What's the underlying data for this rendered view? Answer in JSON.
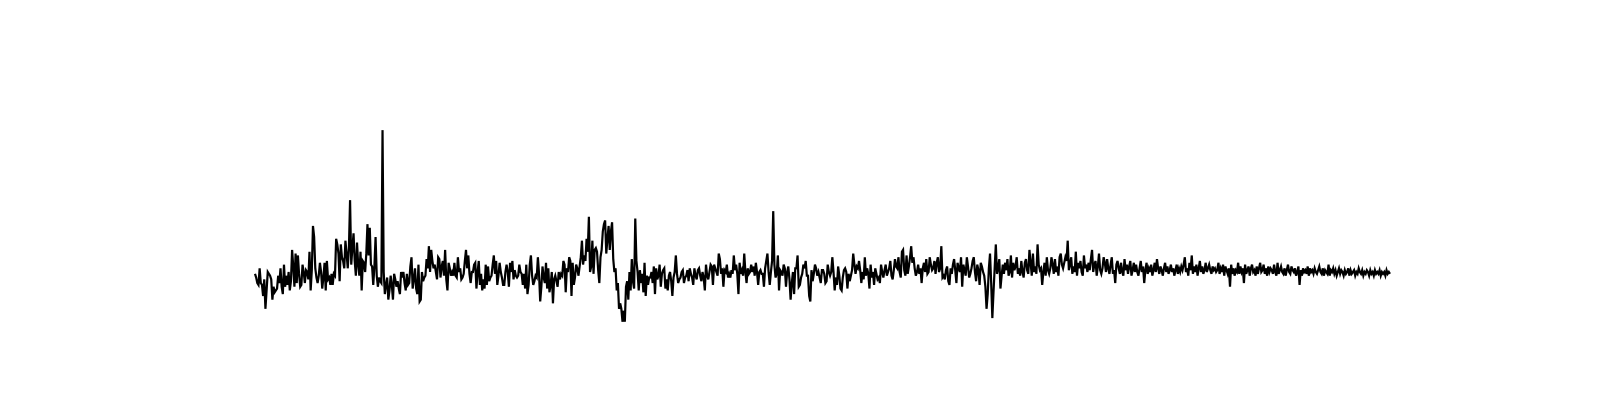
{
  "chart_data": {
    "type": "line",
    "title": "",
    "xlabel": "",
    "ylabel": "",
    "axes_visible": false,
    "grid": false,
    "legend": "none",
    "color": "#000000",
    "xlim": [
      0,
      999
    ],
    "ylim": [
      -3.4,
      11.8
    ],
    "series": [
      {
        "values": [
          0.3,
          0.1,
          -0.2,
          -0.3,
          0.6,
          -0.2,
          -0.3,
          -0.9,
          0.0,
          -1.6,
          -0.6,
          0.4,
          0.3,
          0.2,
          0.0,
          -1.1,
          -0.4,
          -0.7,
          -0.6,
          -0.5,
          0.2,
          -0.2,
          0.6,
          -0.4,
          -0.8,
          0.8,
          -0.4,
          0.2,
          -0.3,
          0.4,
          -0.6,
          -0.1,
          1.6,
          0.7,
          -0.4,
          1.4,
          -0.2,
          1.3,
          0.3,
          -0.4,
          -0.3,
          0.8,
          0.4,
          -0.2,
          0.5,
          0.4,
          0.0,
          1.5,
          -0.6,
          0.5,
          2.9,
          2.3,
          0.6,
          0.1,
          -0.2,
          0.2,
          0.9,
          0.4,
          -0.5,
          0.1,
          0.9,
          -0.6,
          1.0,
          0.0,
          0.1,
          -0.3,
          0.3,
          -0.3,
          0.3,
          0.2,
          2.2,
          1.9,
          1.4,
          -0.1,
          1.9,
          1.2,
          1.0,
          0.6,
          2.1,
          1.4,
          0.6,
          1.7,
          4.3,
          0.8,
          1.7,
          2.5,
          1.0,
          0.2,
          2.0,
          0.8,
          0.2,
          1.5,
          -0.6,
          1.0,
          0.9,
          0.4,
          1.4,
          3.0,
          1.3,
          2.8,
          0.8,
          0.7,
          -0.3,
          0.7,
          2.3,
          0.2,
          -0.4,
          0.1,
          -0.1,
          -0.2,
          8.1,
          0.4,
          -0.8,
          -0.3,
          0.1,
          -1.1,
          -0.6,
          0.2,
          -0.3,
          -1.1,
          0.3,
          0.0,
          -0.4,
          -0.1,
          -0.5,
          -0.8,
          0.4,
          0.1,
          0.4,
          -0.2,
          -0.6,
          0.3,
          -0.3,
          -0.2,
          0.7,
          1.2,
          -0.5,
          0.0,
          0.6,
          -0.5,
          -0.8,
          0.8,
          -1.2,
          -1.1,
          0.4,
          -0.1,
          0.1,
          0.2,
          1.1,
          0.6,
          1.8,
          0.4,
          1.6,
          1.0,
          0.6,
          0.8,
          0.4,
          0.0,
          1.2,
          1.1,
          0.1,
          0.7,
          1.0,
          0.2,
          1.6,
          0.0,
          -0.6,
          0.9,
          0.6,
          0.2,
          0.4,
          0.2,
          0.9,
          0.2,
          0.1,
          1.2,
          0.4,
          0.6,
          0.0,
          0.1,
          0.3,
          1.0,
          1.6,
          0.6,
          1.3,
          0.3,
          -0.2,
          0.4,
          0.4,
          0.8,
          0.9,
          -0.5,
          0.4,
          1.0,
          -0.3,
          0.3,
          -0.6,
          0.0,
          -0.5,
          0.8,
          -0.3,
          0.7,
          -0.1,
          0.1,
          0.2,
          0.8,
          1.3,
          0.3,
          1.0,
          -0.3,
          0.2,
          0.9,
          0.4,
          0.1,
          -0.3,
          -0.3,
          0.4,
          0.8,
          0.4,
          -0.4,
          0.9,
          0.4,
          1.0,
          0.0,
          0.5,
          0.2,
          0.1,
          0.2,
          0.8,
          0.4,
          0.3,
          -0.3,
          0.3,
          -0.5,
          0.8,
          -0.8,
          -0.3,
          0.8,
          1.3,
          0.2,
          -0.3,
          -0.1,
          0.2,
          0.1,
          1.2,
          0.3,
          -1.2,
          -0.4,
          0.7,
          0.1,
          -0.2,
          0.9,
          -0.5,
          0.6,
          -0.7,
          -0.3,
          0.4,
          -1.3,
          0.0,
          0.2,
          -0.1,
          -0.4,
          0.4,
          0.0,
          0.3,
          0.2,
          1.0,
          0.8,
          -0.7,
          0.6,
          0.4,
          1.2,
          1.0,
          -0.9,
          0.9,
          -0.3,
          0.1,
          0.8,
          0.6,
          0.2,
          0.7,
          1.2,
          2.1,
          0.8,
          1.3,
          1.0,
          2.2,
          1.5,
          3.4,
          0.4,
          0.7,
          2.1,
          0.3,
          1.6,
          1.7,
          1.5,
          0.5,
          -0.2,
          1.2,
          1.6,
          2.6,
          3.0,
          3.2,
          1.4,
          2.2,
          2.9,
          1.6,
          2.6,
          3.1,
          1.1,
          0.4,
          0.6,
          -0.6,
          -0.2,
          -1.6,
          -1.3,
          -1.6,
          -2.3,
          -1.7,
          -2.3,
          -0.4,
          -0.1,
          -1.1,
          0.4,
          -0.6,
          1.1,
          -0.1,
          -0.5,
          3.3,
          1.0,
          0.4,
          -0.6,
          0.5,
          -0.2,
          0.3,
          -0.7,
          0.9,
          -0.9,
          0.2,
          -0.3,
          0.1,
          0.1,
          0.4,
          -0.2,
          0.7,
          -0.8,
          0.6,
          0.0,
          0.2,
          0.8,
          -0.4,
          0.3,
          0.5,
          0.6,
          -0.5,
          0.0,
          -0.6,
          0.2,
          0.4,
          -0.1,
          -0.9,
          0.1,
          0.4,
          1.3,
          0.3,
          -0.2,
          0.0,
          0.1,
          0.4,
          0.5,
          -0.2,
          0.1,
          0.2,
          0.5,
          -0.1,
          0.6,
          0.3,
          0.1,
          -0.3,
          0.6,
          0.2,
          0.0,
          0.5,
          0.6,
          0.2,
          -0.1,
          0.4,
          0.1,
          -0.6,
          0.8,
          0.2,
          0.0,
          0.4,
          0.8,
          0.7,
          -0.3,
          0.8,
          0.6,
          0.4,
          0.2,
          1.4,
          1.1,
          0.3,
          0.6,
          -0.4,
          0.5,
          0.4,
          0.8,
          0.1,
          0.3,
          0.1,
          0.5,
          0.3,
          1.3,
          0.5,
          0.8,
          0.3,
          -0.8,
          0.9,
          0.3,
          0.5,
          0.2,
          1.4,
          0.4,
          -0.2,
          0.6,
          0.3,
          0.4,
          0.8,
          0.4,
          0.7,
          0.2,
          0.9,
          0.4,
          -0.3,
          0.4,
          0.5,
          0.3,
          0.3,
          -0.4,
          0.6,
          1.0,
          1.4,
          0.4,
          -0.3,
          0.4,
          1.0,
          3.7,
          0.8,
          0.1,
          0.3,
          1.3,
          -0.6,
          0.5,
          0.4,
          0.2,
          0.8,
          0.6,
          -0.4,
          0.4,
          0.7,
          0.0,
          -1.1,
          -0.2,
          0.4,
          -0.8,
          0.6,
          0.6,
          1.3,
          -0.4,
          -0.3,
          0.1,
          0.3,
          0.8,
          0.6,
          1.0,
          0.2,
          0.2,
          -0.9,
          -1.2,
          0.5,
          -0.1,
          0.3,
          0.8,
          0.6,
          0.2,
          0.4,
          0.1,
          -0.2,
          0.5,
          0.5,
          0.3,
          -0.2,
          -0.1,
          0.8,
          0.4,
          0.2,
          0.4,
          1.2,
          0.4,
          -0.6,
          0.1,
          -0.3,
          0.7,
          0.2,
          -0.5,
          -0.6,
          0.1,
          0.5,
          0.6,
          0.4,
          -0.5,
          0.3,
          -0.1,
          0.2,
          0.5,
          1.4,
          0.8,
          0.3,
          0.7,
          0.6,
          1.0,
          0.5,
          -0.2,
          0.4,
          0.0,
          1.2,
          0.2,
          0.6,
          0.3,
          -0.5,
          0.8,
          0.1,
          0.4,
          -0.3,
          0.6,
          0.3,
          0.0,
          0.1,
          -0.2,
          0.8,
          0.4,
          0.1,
          0.5,
          0.8,
          0.2,
          0.4,
          0.6,
          1.0,
          0.2,
          0.0,
          0.5,
          1.1,
          0.7,
          0.6,
          1.2,
          0.4,
          0.1,
          1.5,
          1.6,
          0.5,
          0.2,
          1.3,
          0.3,
          0.7,
          1.2,
          1.8,
          0.9,
          1.2,
          0.6,
          0.2,
          0.4,
          0.8,
          0.3,
          0.6,
          -0.2,
          0.6,
          0.9,
          0.4,
          1.1,
          0.3,
          0.4,
          1.2,
          0.8,
          0.5,
          0.6,
          1.0,
          0.3,
          0.9,
          1.2,
          0.4,
          0.6,
          1.8,
          0.1,
          0.2,
          0.0,
          0.5,
          0.7,
          -0.1,
          -0.3,
          0.6,
          0.3,
          0.8,
          1.1,
          0.5,
          -0.2,
          0.9,
          0.6,
          0.4,
          1.2,
          -0.4,
          0.8,
          0.5,
          0.2,
          1.2,
          0.7,
          0.1,
          0.3,
          0.6,
          1.0,
          1.2,
          0.4,
          -0.1,
          0.8,
          0.5,
          -0.3,
          0.9,
          0.7,
          0.4,
          0.2,
          -0.4,
          -1.6,
          -0.8,
          0.6,
          1.4,
          -0.2,
          -2.1,
          -0.7,
          0.6,
          1.9,
          0.3,
          0.6,
          1.1,
          -0.5,
          0.2,
          0.8,
          0.3,
          0.9,
          0.5,
          1.1,
          0.2,
          0.4,
          1.3,
          0.1,
          0.9,
          0.5,
          0.7,
          1.2,
          0.3,
          0.6,
          0.2,
          1.0,
          0.4,
          0.1,
          0.9,
          1.1,
          0.5,
          0.3,
          1.6,
          0.9,
          0.2,
          1.4,
          0.4,
          0.7,
          0.3,
          1.9,
          0.8,
          0.5,
          0.6,
          -0.3,
          0.4,
          0.9,
          0.2,
          1.2,
          0.5,
          0.3,
          0.6,
          1.2,
          0.8,
          0.3,
          1.1,
          0.4,
          0.7,
          0.2,
          1.2,
          1.4,
          0.8,
          0.6,
          0.9,
          1.2,
          1.0,
          2.1,
          0.5,
          0.8,
          1.2,
          0.3,
          0.7,
          0.4,
          1.5,
          0.2,
          0.9,
          0.6,
          1.0,
          0.4,
          0.2,
          1.3,
          0.6,
          0.8,
          0.4,
          0.9,
          0.5,
          1.1,
          1.6,
          0.4,
          0.8,
          1.0,
          0.2,
          0.7,
          1.4,
          0.5,
          0.3,
          0.6,
          1.2,
          0.9,
          0.4,
          1.1,
          0.6,
          0.3,
          0.8,
          1.2,
          0.3,
          0.5,
          -0.2,
          0.8,
          1.0,
          0.6,
          0.3,
          0.9,
          0.4,
          0.2,
          1.1,
          0.5,
          0.8,
          0.3,
          0.7,
          1.0,
          0.2,
          0.5,
          0.9,
          0.4,
          0.8,
          0.4,
          0.2,
          0.6,
          1.0,
          0.4,
          0.7,
          -0.2,
          0.5,
          0.9,
          0.3,
          0.6,
          0.4,
          0.8,
          0.2,
          0.5,
          0.9,
          0.4,
          1.1,
          0.6,
          0.3,
          0.7,
          0.5,
          0.2,
          0.6,
          0.9,
          0.4,
          0.7,
          0.3,
          0.5,
          0.8,
          0.4,
          0.6,
          0.2,
          0.5,
          0.8,
          0.3,
          0.6,
          0.4,
          0.7,
          0.5,
          0.8,
          1.2,
          0.4,
          0.6,
          0.2,
          0.9,
          0.5,
          1.3,
          0.3,
          0.7,
          0.4,
          0.8,
          0.2,
          0.6,
          1.0,
          0.4,
          0.7,
          0.3,
          0.5,
          0.9,
          0.4,
          0.6,
          0.8,
          0.5,
          0.3,
          0.7,
          0.5,
          0.6,
          0.4,
          0.5,
          0.9,
          0.3,
          0.6,
          0.4,
          0.8,
          0.2,
          0.7,
          0.5,
          0.3,
          0.6,
          -0.4,
          0.8,
          0.3,
          0.6,
          0.2,
          0.5,
          0.4,
          0.9,
          0.3,
          0.7,
          0.4,
          0.6,
          -0.2,
          0.8,
          0.3,
          0.5,
          0.7,
          0.2,
          0.6,
          0.8,
          0.4,
          0.5,
          0.2,
          0.7,
          0.3,
          0.6,
          0.9,
          0.4,
          0.5,
          0.8,
          0.3,
          0.6,
          0.2,
          0.7,
          0.4,
          0.6,
          0.5,
          0.3,
          0.8,
          0.4,
          0.2,
          0.9,
          0.3,
          0.5,
          0.7,
          0.4,
          0.3,
          0.6,
          0.2,
          0.5,
          0.8,
          0.4,
          0.3,
          0.7,
          0.5,
          0.4,
          0.6,
          0.2,
          0.4,
          0.7,
          -0.3,
          0.5,
          0.2,
          0.6,
          0.4,
          0.5,
          0.3,
          0.7,
          0.2,
          0.6,
          0.4,
          0.5,
          0.3,
          0.6,
          0.4,
          0.3,
          0.5,
          0.7,
          0.4,
          0.3,
          0.6,
          0.2,
          0.5,
          0.4,
          0.3,
          0.8,
          0.2,
          0.5,
          0.4,
          0.6,
          0.3,
          0.5,
          0.2,
          0.4,
          0.6,
          0.3,
          0.5,
          0.4,
          0.2,
          0.5,
          0.3,
          0.4,
          0.6,
          0.2,
          0.5,
          0.3,
          0.4,
          0.5,
          0.2,
          0.4,
          0.3,
          0.6,
          0.4,
          0.3,
          0.5,
          0.2,
          0.4,
          0.3,
          0.5,
          0.4,
          0.2,
          0.5,
          0.3,
          0.4,
          0.2,
          0.5,
          0.3,
          0.4,
          0.3,
          0.5,
          0.2,
          0.4,
          0.3,
          0.4,
          0.2,
          0.5,
          0.3,
          0.4,
          0.3
        ]
      }
    ]
  }
}
